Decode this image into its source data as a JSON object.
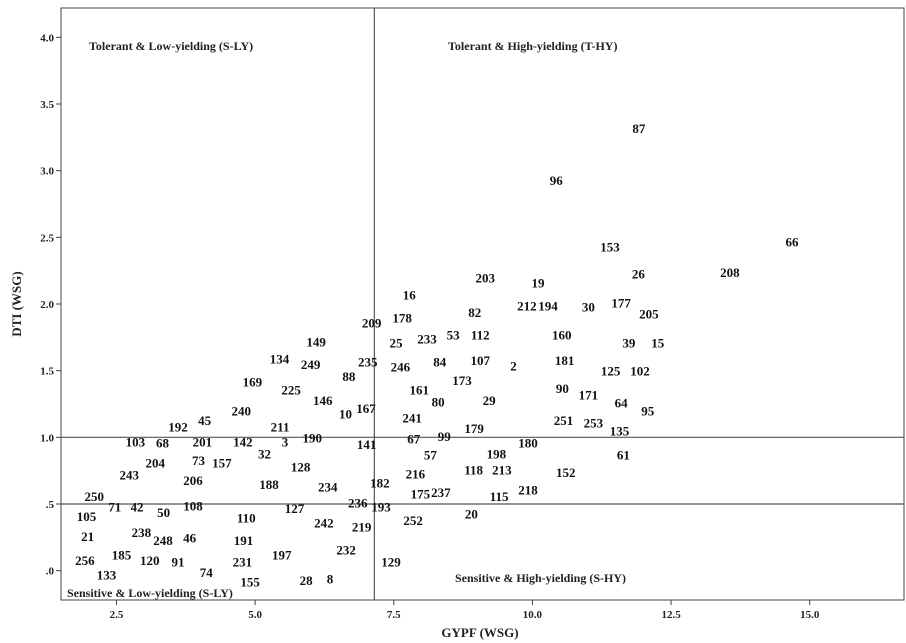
{
  "chart_data": {
    "type": "scatter",
    "title": "",
    "xlabel": "GYPF (WSG)",
    "ylabel": "DTI (WSG)",
    "xlim": [
      1.5,
      16.7
    ],
    "ylim": [
      -0.22,
      4.22
    ],
    "x_ticks": [
      2.5,
      5.0,
      7.5,
      10.0,
      12.5,
      15.0
    ],
    "x_tick_labels": [
      "2.5",
      "5.0",
      "7.5",
      "10.0",
      "12.5",
      "15.0"
    ],
    "y_ticks": [
      0.0,
      0.5,
      1.0,
      1.5,
      2.0,
      2.5,
      3.0,
      3.5,
      4.0
    ],
    "y_tick_labels": [
      ".0",
      ".5",
      "1.0",
      "1.5",
      "2.0",
      "2.5",
      "3.0",
      "3.5",
      "4.0"
    ],
    "grid": false,
    "reference_lines": {
      "x": 7.15,
      "y": [
        0.5,
        1.0
      ]
    },
    "quadrant_labels": {
      "top_left": "Tolerant & Low-yielding (S-LY)",
      "top_right": "Tolerant & High-yielding (T-HY)",
      "bottom_left": "Sensitive & Low-yielding (S-LY)",
      "bottom_right": "Sensitive & High-yielding (S-HY)"
    },
    "points": [
      {
        "label": "87",
        "x": 11.92,
        "y": 3.32
      },
      {
        "label": "96",
        "x": 10.43,
        "y": 2.93
      },
      {
        "label": "66",
        "x": 14.68,
        "y": 2.47
      },
      {
        "label": "153",
        "x": 11.4,
        "y": 2.43
      },
      {
        "label": "26",
        "x": 11.91,
        "y": 2.23
      },
      {
        "label": "208",
        "x": 13.56,
        "y": 2.24
      },
      {
        "label": "203",
        "x": 9.15,
        "y": 2.2
      },
      {
        "label": "19",
        "x": 10.1,
        "y": 2.16
      },
      {
        "label": "16",
        "x": 7.78,
        "y": 2.07
      },
      {
        "label": "82",
        "x": 8.96,
        "y": 1.94
      },
      {
        "label": "212",
        "x": 9.9,
        "y": 1.99
      },
      {
        "label": "194",
        "x": 10.28,
        "y": 1.99
      },
      {
        "label": "30",
        "x": 11.01,
        "y": 1.98
      },
      {
        "label": "177",
        "x": 11.6,
        "y": 2.01
      },
      {
        "label": "205",
        "x": 12.1,
        "y": 1.93
      },
      {
        "label": "209",
        "x": 7.1,
        "y": 1.86
      },
      {
        "label": "178",
        "x": 7.65,
        "y": 1.9
      },
      {
        "label": "25",
        "x": 7.54,
        "y": 1.71
      },
      {
        "label": "233",
        "x": 8.1,
        "y": 1.74
      },
      {
        "label": "53",
        "x": 8.57,
        "y": 1.77
      },
      {
        "label": "112",
        "x": 9.06,
        "y": 1.77
      },
      {
        "label": "160",
        "x": 10.53,
        "y": 1.77
      },
      {
        "label": "39",
        "x": 11.74,
        "y": 1.71
      },
      {
        "label": "15",
        "x": 12.26,
        "y": 1.71
      },
      {
        "label": "149",
        "x": 6.1,
        "y": 1.72
      },
      {
        "label": "134",
        "x": 5.44,
        "y": 1.59
      },
      {
        "label": "249",
        "x": 6.0,
        "y": 1.55
      },
      {
        "label": "235",
        "x": 7.03,
        "y": 1.57
      },
      {
        "label": "246",
        "x": 7.62,
        "y": 1.53
      },
      {
        "label": "84",
        "x": 8.33,
        "y": 1.57
      },
      {
        "label": "107",
        "x": 9.06,
        "y": 1.58
      },
      {
        "label": "2",
        "x": 9.66,
        "y": 1.54
      },
      {
        "label": "181",
        "x": 10.58,
        "y": 1.58
      },
      {
        "label": "125",
        "x": 11.41,
        "y": 1.5
      },
      {
        "label": "102",
        "x": 11.94,
        "y": 1.5
      },
      {
        "label": "88",
        "x": 6.69,
        "y": 1.46
      },
      {
        "label": "173",
        "x": 8.73,
        "y": 1.43
      },
      {
        "label": "169",
        "x": 4.95,
        "y": 1.42
      },
      {
        "label": "225",
        "x": 5.65,
        "y": 1.36
      },
      {
        "label": "161",
        "x": 7.96,
        "y": 1.36
      },
      {
        "label": "90",
        "x": 10.54,
        "y": 1.37
      },
      {
        "label": "171",
        "x": 11.01,
        "y": 1.32
      },
      {
        "label": "146",
        "x": 6.22,
        "y": 1.28
      },
      {
        "label": "80",
        "x": 8.3,
        "y": 1.27
      },
      {
        "label": "29",
        "x": 9.22,
        "y": 1.28
      },
      {
        "label": "64",
        "x": 11.6,
        "y": 1.26
      },
      {
        "label": "95",
        "x": 12.08,
        "y": 1.2
      },
      {
        "label": "240",
        "x": 4.75,
        "y": 1.2
      },
      {
        "label": "10",
        "x": 6.63,
        "y": 1.18
      },
      {
        "label": "167",
        "x": 7.0,
        "y": 1.22
      },
      {
        "label": "241",
        "x": 7.83,
        "y": 1.15
      },
      {
        "label": "251",
        "x": 10.56,
        "y": 1.13
      },
      {
        "label": "253",
        "x": 11.1,
        "y": 1.11
      },
      {
        "label": "45",
        "x": 4.09,
        "y": 1.13
      },
      {
        "label": "192",
        "x": 3.61,
        "y": 1.08
      },
      {
        "label": "211",
        "x": 5.45,
        "y": 1.08
      },
      {
        "label": "179",
        "x": 8.95,
        "y": 1.07
      },
      {
        "label": "135",
        "x": 11.57,
        "y": 1.05
      },
      {
        "label": "99",
        "x": 8.41,
        "y": 1.01
      },
      {
        "label": "67",
        "x": 7.86,
        "y": 0.99
      },
      {
        "label": "190",
        "x": 6.03,
        "y": 1.0
      },
      {
        "label": "103",
        "x": 2.84,
        "y": 0.97
      },
      {
        "label": "68",
        "x": 3.33,
        "y": 0.96
      },
      {
        "label": "201",
        "x": 4.05,
        "y": 0.97
      },
      {
        "label": "142",
        "x": 4.78,
        "y": 0.97
      },
      {
        "label": "3",
        "x": 5.54,
        "y": 0.97
      },
      {
        "label": "141",
        "x": 7.01,
        "y": 0.95
      },
      {
        "label": "180",
        "x": 9.92,
        "y": 0.96
      },
      {
        "label": "198",
        "x": 9.35,
        "y": 0.88
      },
      {
        "label": "57",
        "x": 8.16,
        "y": 0.87
      },
      {
        "label": "61",
        "x": 11.64,
        "y": 0.87
      },
      {
        "label": "32",
        "x": 5.17,
        "y": 0.88
      },
      {
        "label": "204",
        "x": 3.2,
        "y": 0.81
      },
      {
        "label": "73",
        "x": 3.98,
        "y": 0.83
      },
      {
        "label": "157",
        "x": 4.4,
        "y": 0.81
      },
      {
        "label": "128",
        "x": 5.82,
        "y": 0.78
      },
      {
        "label": "216",
        "x": 7.89,
        "y": 0.73
      },
      {
        "label": "118",
        "x": 8.94,
        "y": 0.76
      },
      {
        "label": "213",
        "x": 9.45,
        "y": 0.76
      },
      {
        "label": "152",
        "x": 10.6,
        "y": 0.74
      },
      {
        "label": "243",
        "x": 2.73,
        "y": 0.72
      },
      {
        "label": "206",
        "x": 3.88,
        "y": 0.68
      },
      {
        "label": "188",
        "x": 5.25,
        "y": 0.65
      },
      {
        "label": "234",
        "x": 6.31,
        "y": 0.63
      },
      {
        "label": "182",
        "x": 7.25,
        "y": 0.66
      },
      {
        "label": "175",
        "x": 7.98,
        "y": 0.58
      },
      {
        "label": "237",
        "x": 8.35,
        "y": 0.59
      },
      {
        "label": "218",
        "x": 9.92,
        "y": 0.61
      },
      {
        "label": "115",
        "x": 9.4,
        "y": 0.56
      },
      {
        "label": "250",
        "x": 2.1,
        "y": 0.56
      },
      {
        "label": "236",
        "x": 6.85,
        "y": 0.51
      },
      {
        "label": "193",
        "x": 7.27,
        "y": 0.48
      },
      {
        "label": "71",
        "x": 2.47,
        "y": 0.48
      },
      {
        "label": "42",
        "x": 2.87,
        "y": 0.48
      },
      {
        "label": "108",
        "x": 3.88,
        "y": 0.49
      },
      {
        "label": "127",
        "x": 5.71,
        "y": 0.47
      },
      {
        "label": "50",
        "x": 3.35,
        "y": 0.44
      },
      {
        "label": "105",
        "x": 1.96,
        "y": 0.41
      },
      {
        "label": "110",
        "x": 4.84,
        "y": 0.4
      },
      {
        "label": "20",
        "x": 8.9,
        "y": 0.43
      },
      {
        "label": "252",
        "x": 7.85,
        "y": 0.38
      },
      {
        "label": "242",
        "x": 6.24,
        "y": 0.36
      },
      {
        "label": "219",
        "x": 6.92,
        "y": 0.33
      },
      {
        "label": "238",
        "x": 2.95,
        "y": 0.29
      },
      {
        "label": "21",
        "x": 1.98,
        "y": 0.26
      },
      {
        "label": "248",
        "x": 3.34,
        "y": 0.23
      },
      {
        "label": "46",
        "x": 3.82,
        "y": 0.25
      },
      {
        "label": "191",
        "x": 4.79,
        "y": 0.23
      },
      {
        "label": "232",
        "x": 6.64,
        "y": 0.16
      },
      {
        "label": "197",
        "x": 5.48,
        "y": 0.12
      },
      {
        "label": "185",
        "x": 2.59,
        "y": 0.12
      },
      {
        "label": "129",
        "x": 7.45,
        "y": 0.07
      },
      {
        "label": "256",
        "x": 1.93,
        "y": 0.08
      },
      {
        "label": "120",
        "x": 3.1,
        "y": 0.08
      },
      {
        "label": "91",
        "x": 3.61,
        "y": 0.07
      },
      {
        "label": "231",
        "x": 4.77,
        "y": 0.07
      },
      {
        "label": "133",
        "x": 2.32,
        "y": -0.03
      },
      {
        "label": "74",
        "x": 4.12,
        "y": -0.01
      },
      {
        "label": "155",
        "x": 4.91,
        "y": -0.08
      },
      {
        "label": "28",
        "x": 5.92,
        "y": -0.07
      },
      {
        "label": "8",
        "x": 6.35,
        "y": -0.06
      }
    ]
  }
}
